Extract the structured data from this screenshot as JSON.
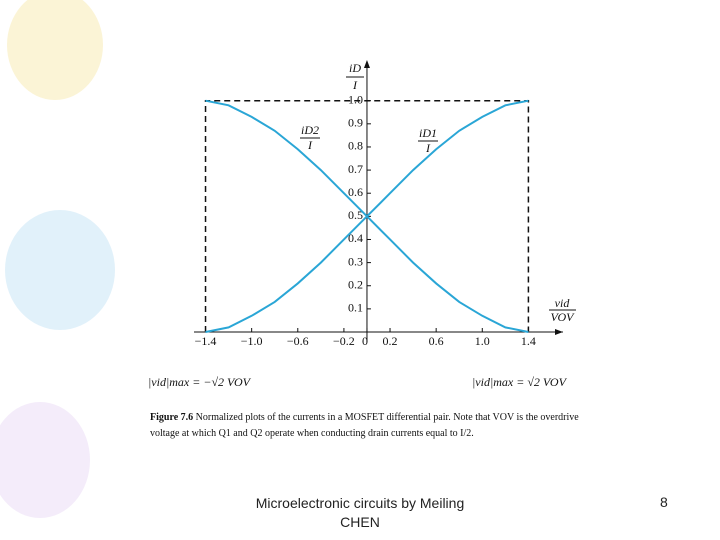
{
  "chart_data": {
    "type": "line",
    "y_label_num": "iD",
    "y_label_den": "I",
    "x_label_num": "vid",
    "x_label_den": "VOV",
    "x": [
      -1.4,
      -1.2,
      -1.0,
      -0.8,
      -0.6,
      -0.4,
      -0.2,
      0,
      0.2,
      0.4,
      0.6,
      0.8,
      1.0,
      1.2,
      1.4
    ],
    "series": [
      {
        "label_num": "iD1",
        "label_den": "I",
        "color": "#2aa6d6",
        "values": [
          0.0,
          0.02,
          0.07,
          0.13,
          0.21,
          0.3,
          0.4,
          0.5,
          0.6,
          0.7,
          0.79,
          0.87,
          0.93,
          0.98,
          1.0
        ]
      },
      {
        "label_num": "iD2",
        "label_den": "I",
        "color": "#2aa6d6",
        "values": [
          1.0,
          0.98,
          0.93,
          0.87,
          0.79,
          0.7,
          0.6,
          0.5,
          0.4,
          0.3,
          0.21,
          0.13,
          0.07,
          0.02,
          0.0
        ]
      }
    ],
    "xlim": [
      -1.5,
      1.7
    ],
    "ylim": [
      0,
      1.15
    ],
    "xticks": [
      {
        "value": -1.4,
        "label": "−1.4"
      },
      {
        "value": -1.0,
        "label": "−1.0"
      },
      {
        "value": -0.6,
        "label": "−0.6"
      },
      {
        "value": -0.2,
        "label": "−0.2"
      },
      0,
      0.2,
      0.6,
      {
        "value": 1.0,
        "label": "1.0"
      },
      1.4
    ],
    "yticks": [
      0.1,
      0.2,
      0.3,
      0.4,
      0.5,
      0.6,
      0.7,
      0.8,
      0.9,
      {
        "value": 1.0,
        "label": "1.0"
      }
    ],
    "left_limit_label": "|vid|max = −√2 VOV",
    "right_limit_label": "|vid|max = √2 VOV"
  },
  "caption_label": "Figure 7.6",
  "caption_text": "Normalized plots of the currents in a MOSFET differential pair. Note that VOV is the overdrive voltage at which Q1 and Q2 operate when conducting drain currents equal to I/2.",
  "footer": "Microelectronic circuits by Meiling CHEN",
  "page_number": "8"
}
